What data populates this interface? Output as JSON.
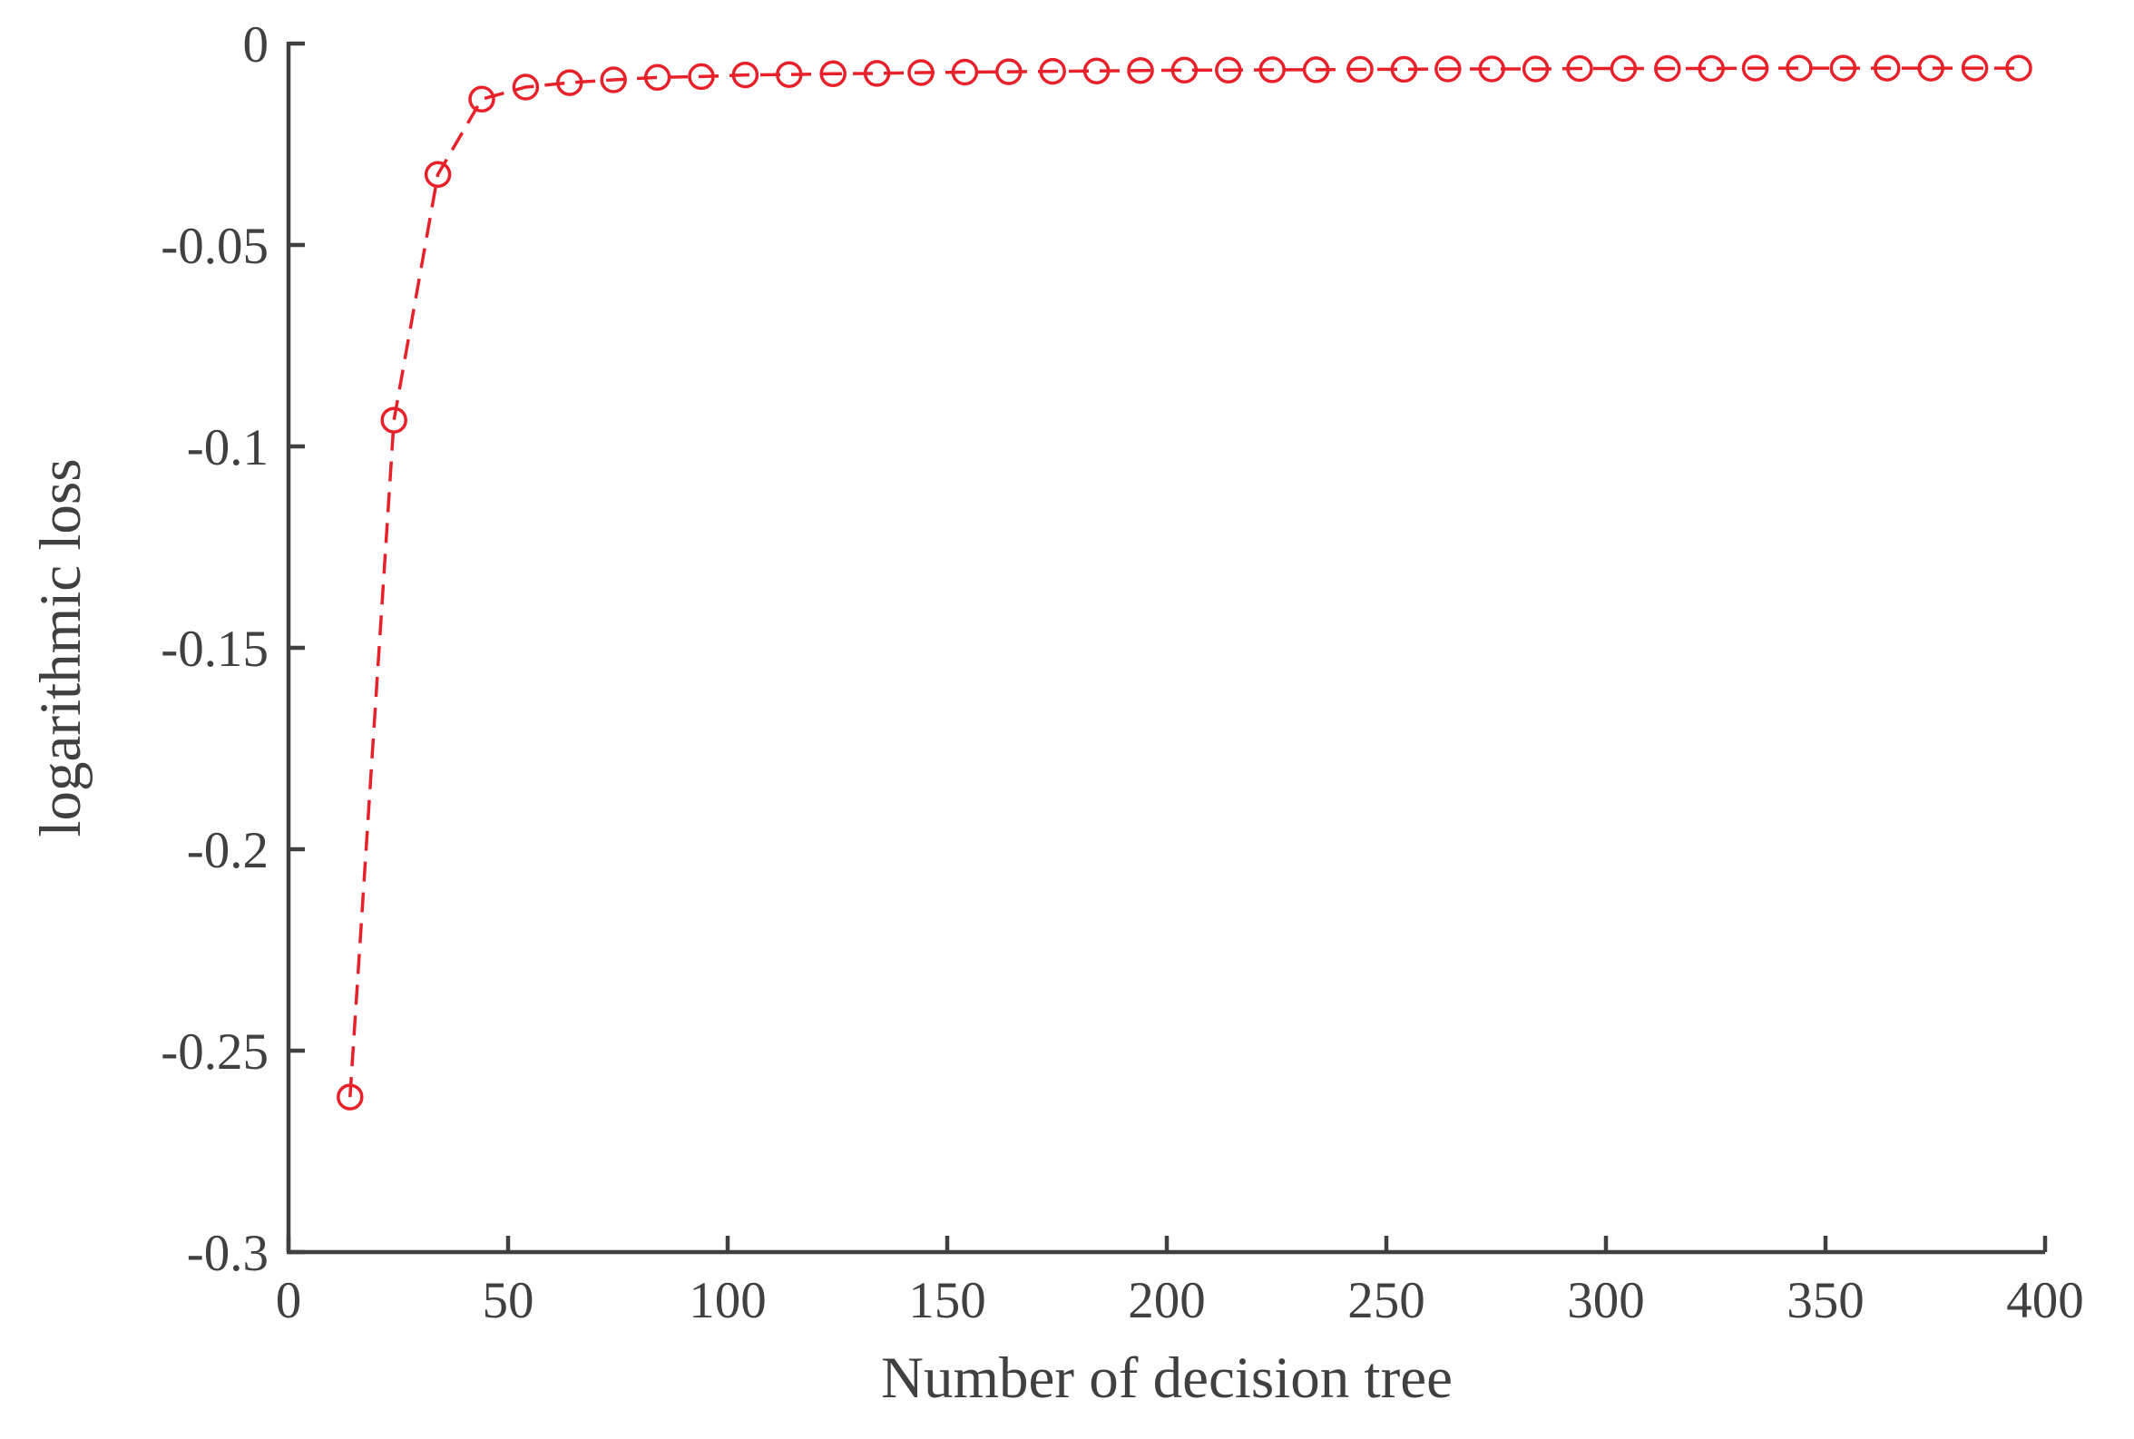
{
  "chart_data": {
    "type": "line",
    "title": "",
    "xlabel": "Number of decision tree",
    "ylabel": "logarithmic loss",
    "xlim": [
      0,
      400
    ],
    "ylim": [
      -0.3,
      0
    ],
    "xticks": [
      0,
      50,
      100,
      150,
      200,
      250,
      300,
      350,
      400
    ],
    "yticks": [
      0,
      -0.05,
      -0.1,
      -0.15,
      -0.2,
      -0.25,
      -0.3
    ],
    "xtick_labels": [
      "0",
      "50",
      "100",
      "150",
      "200",
      "250",
      "300",
      "350",
      "400"
    ],
    "ytick_labels": [
      "0",
      "-0.05",
      "-0.1",
      "-0.15",
      "-0.2",
      "-0.25",
      "-0.3"
    ],
    "grid": false,
    "legend": "none",
    "series": [
      {
        "color": "#e8202a",
        "line_style": "dashed",
        "marker": "open-circle",
        "x": [
          14,
          24,
          34,
          44,
          54,
          64,
          74,
          84,
          94,
          104,
          114,
          124,
          134,
          144,
          154,
          164,
          174,
          184,
          194,
          204,
          214,
          224,
          234,
          244,
          254,
          264,
          274,
          284,
          294,
          304,
          314,
          324,
          334,
          344,
          354,
          364,
          374,
          384,
          394
        ],
        "y": [
          -0.2615,
          -0.0935,
          -0.0325,
          -0.0138,
          -0.0108,
          -0.0097,
          -0.009,
          -0.0084,
          -0.0082,
          -0.0078,
          -0.0077,
          -0.0075,
          -0.0074,
          -0.0072,
          -0.0071,
          -0.007,
          -0.0069,
          -0.0068,
          -0.0067,
          -0.0066,
          -0.0066,
          -0.0065,
          -0.0065,
          -0.0064,
          -0.0064,
          -0.0063,
          -0.0063,
          -0.0063,
          -0.0062,
          -0.0062,
          -0.0062,
          -0.0062,
          -0.0061,
          -0.0061,
          -0.0061,
          -0.0061,
          -0.0061,
          -0.0061,
          -0.0061
        ]
      }
    ]
  }
}
